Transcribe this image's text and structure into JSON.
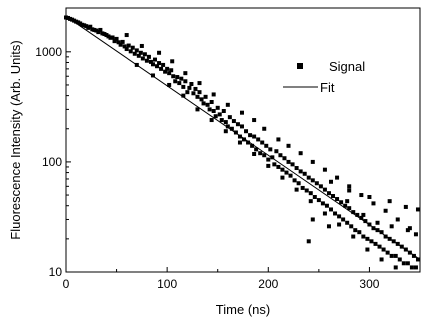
{
  "chart_data": {
    "type": "scatter",
    "title": "",
    "xlabel": "Time (ns)",
    "ylabel": "Fluorescence Intensity (Arb. Units)",
    "xlim": [
      0,
      350
    ],
    "ylim": [
      10,
      2500
    ],
    "y_scale": "log",
    "x_ticks": [
      0,
      100,
      200,
      300
    ],
    "x_tick_labels": [
      "0",
      "100",
      "200",
      "300"
    ],
    "y_ticks": [
      10,
      100,
      1000
    ],
    "y_tick_labels": [
      "10",
      "100",
      "1000"
    ],
    "grid": false,
    "legend_position": "right",
    "series": [
      {
        "name": "Signal",
        "kind": "scatter",
        "marker": "square",
        "color": "#000000",
        "points": [
          [
            0,
            2050
          ],
          [
            2,
            2030
          ],
          [
            4,
            1990
          ],
          [
            6,
            1960
          ],
          [
            8,
            1920
          ],
          [
            10,
            1880
          ],
          [
            12,
            1850
          ],
          [
            14,
            1810
          ],
          [
            16,
            1760
          ],
          [
            18,
            1740
          ],
          [
            20,
            1710
          ],
          [
            22,
            1650
          ],
          [
            24,
            1690
          ],
          [
            26,
            1600
          ],
          [
            28,
            1580
          ],
          [
            30,
            1560
          ],
          [
            32,
            1510
          ],
          [
            34,
            1580
          ],
          [
            36,
            1470
          ],
          [
            38,
            1450
          ],
          [
            40,
            1420
          ],
          [
            42,
            1380
          ],
          [
            44,
            1340
          ],
          [
            46,
            1350
          ],
          [
            48,
            1250
          ],
          [
            50,
            1310
          ],
          [
            52,
            1220
          ],
          [
            54,
            1160
          ],
          [
            56,
            1230
          ],
          [
            58,
            1120
          ],
          [
            60,
            1060
          ],
          [
            62,
            1140
          ],
          [
            64,
            1010
          ],
          [
            66,
            1090
          ],
          [
            68,
            960
          ],
          [
            70,
            1030
          ],
          [
            72,
            920
          ],
          [
            74,
            980
          ],
          [
            76,
            870
          ],
          [
            78,
            950
          ],
          [
            80,
            830
          ],
          [
            82,
            900
          ],
          [
            84,
            810
          ],
          [
            86,
            770
          ],
          [
            88,
            850
          ],
          [
            90,
            740
          ],
          [
            92,
            790
          ],
          [
            94,
            700
          ],
          [
            96,
            760
          ],
          [
            98,
            660
          ],
          [
            100,
            700
          ],
          [
            102,
            640
          ],
          [
            104,
            680
          ],
          [
            106,
            600
          ],
          [
            108,
            540
          ],
          [
            110,
            590
          ],
          [
            112,
            520
          ],
          [
            114,
            570
          ],
          [
            116,
            480
          ],
          [
            118,
            540
          ],
          [
            120,
            430
          ],
          [
            122,
            470
          ],
          [
            124,
            510
          ],
          [
            126,
            420
          ],
          [
            128,
            460
          ],
          [
            130,
            390
          ],
          [
            132,
            430
          ],
          [
            134,
            370
          ],
          [
            136,
            340
          ],
          [
            138,
            390
          ],
          [
            140,
            330
          ],
          [
            142,
            300
          ],
          [
            144,
            350
          ],
          [
            146,
            290
          ],
          [
            148,
            260
          ],
          [
            150,
            310
          ],
          [
            152,
            270
          ],
          [
            154,
            240
          ],
          [
            156,
            290
          ],
          [
            158,
            230
          ],
          [
            160,
            210
          ],
          [
            162,
            255
          ],
          [
            164,
            200
          ],
          [
            166,
            235
          ],
          [
            168,
            185
          ],
          [
            170,
            220
          ],
          [
            172,
            170
          ],
          [
            174,
            210
          ],
          [
            176,
            160
          ],
          [
            178,
            190
          ],
          [
            180,
            150
          ],
          [
            182,
            175
          ],
          [
            184,
            140
          ],
          [
            186,
            170
          ],
          [
            188,
            130
          ],
          [
            190,
            160
          ],
          [
            192,
            120
          ],
          [
            194,
            150
          ],
          [
            196,
            115
          ],
          [
            198,
            140
          ],
          [
            200,
            105
          ],
          [
            202,
            130
          ],
          [
            204,
            110
          ],
          [
            206,
            95
          ],
          [
            208,
            125
          ],
          [
            210,
            90
          ],
          [
            212,
            115
          ],
          [
            214,
            85
          ],
          [
            216,
            108
          ],
          [
            218,
            80
          ],
          [
            220,
            100
          ],
          [
            222,
            75
          ],
          [
            224,
            95
          ],
          [
            226,
            68
          ],
          [
            228,
            88
          ],
          [
            230,
            64
          ],
          [
            232,
            82
          ],
          [
            234,
            58
          ],
          [
            236,
            78
          ],
          [
            238,
            55
          ],
          [
            240,
            72
          ],
          [
            242,
            52
          ],
          [
            244,
            68
          ],
          [
            246,
            48
          ],
          [
            248,
            64
          ],
          [
            250,
            45
          ],
          [
            252,
            60
          ],
          [
            254,
            42
          ],
          [
            256,
            56
          ],
          [
            258,
            40
          ],
          [
            260,
            52
          ],
          [
            262,
            37
          ],
          [
            264,
            49
          ],
          [
            266,
            34
          ],
          [
            268,
            46
          ],
          [
            270,
            32
          ],
          [
            272,
            43
          ],
          [
            274,
            30
          ],
          [
            276,
            40
          ],
          [
            278,
            28
          ],
          [
            280,
            38
          ],
          [
            282,
            26
          ],
          [
            284,
            35
          ],
          [
            286,
            24
          ],
          [
            288,
            33
          ],
          [
            290,
            23
          ],
          [
            292,
            31
          ],
          [
            294,
            21
          ],
          [
            296,
            29
          ],
          [
            298,
            20
          ],
          [
            300,
            27
          ],
          [
            302,
            19
          ],
          [
            304,
            25
          ],
          [
            306,
            18
          ],
          [
            308,
            24
          ],
          [
            310,
            17
          ],
          [
            312,
            23
          ],
          [
            314,
            16
          ],
          [
            316,
            21
          ],
          [
            318,
            15
          ],
          [
            320,
            20
          ],
          [
            322,
            14
          ],
          [
            324,
            19
          ],
          [
            326,
            14
          ],
          [
            328,
            18
          ],
          [
            330,
            13
          ],
          [
            332,
            17
          ],
          [
            334,
            12
          ],
          [
            336,
            16
          ],
          [
            338,
            12
          ],
          [
            340,
            15
          ],
          [
            342,
            11
          ],
          [
            344,
            14
          ],
          [
            346,
            11
          ],
          [
            348,
            13
          ],
          [
            60,
            1420
          ],
          [
            75,
            1130
          ],
          [
            92,
            980
          ],
          [
            105,
            820
          ],
          [
            118,
            640
          ],
          [
            132,
            520
          ],
          [
            146,
            410
          ],
          [
            160,
            330
          ],
          [
            174,
            280
          ],
          [
            186,
            240
          ],
          [
            196,
            200
          ],
          [
            210,
            160
          ],
          [
            220,
            140
          ],
          [
            232,
            120
          ],
          [
            244,
            100
          ],
          [
            256,
            85
          ],
          [
            268,
            72
          ],
          [
            280,
            60
          ],
          [
            292,
            50
          ],
          [
            304,
            42
          ],
          [
            316,
            36
          ],
          [
            328,
            30
          ],
          [
            340,
            25
          ],
          [
            70,
            760
          ],
          [
            86,
            610
          ],
          [
            102,
            500
          ],
          [
            116,
            400
          ],
          [
            130,
            300
          ],
          [
            144,
            240
          ],
          [
            158,
            190
          ],
          [
            172,
            150
          ],
          [
            186,
            118
          ],
          [
            200,
            92
          ],
          [
            214,
            72
          ],
          [
            228,
            56
          ],
          [
            242,
            44
          ],
          [
            256,
            34
          ],
          [
            270,
            27
          ],
          [
            284,
            21
          ],
          [
            298,
            16
          ],
          [
            312,
            13
          ],
          [
            326,
            11
          ],
          [
            240,
            19
          ],
          [
            260,
            26
          ],
          [
            280,
            55
          ],
          [
            300,
            48
          ],
          [
            320,
            44
          ],
          [
            336,
            39
          ],
          [
            348,
            37
          ],
          [
            244,
            30
          ],
          [
            262,
            66
          ],
          [
            278,
            44
          ],
          [
            294,
            33
          ],
          [
            308,
            28
          ],
          [
            322,
            26
          ],
          [
            338,
            24
          ],
          [
            346,
            22
          ]
        ]
      },
      {
        "name": "Fit",
        "kind": "line",
        "color": "#000000",
        "function": "single-exponential",
        "x": [
          0,
          350
        ],
        "y": [
          2100,
          13
        ]
      }
    ]
  }
}
